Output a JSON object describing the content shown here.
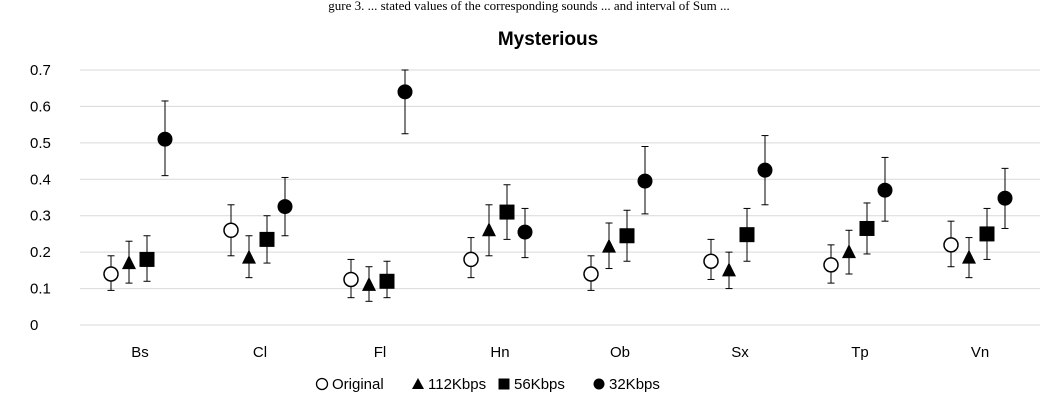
{
  "page": {
    "caption_fragment": "gure 3.   ... stated values of the corresponding sounds ... and interval of Sum ..."
  },
  "chart_data": {
    "type": "scatter",
    "title": "Mysterious",
    "xlabel": "",
    "ylabel": "",
    "ylim": [
      0,
      0.7
    ],
    "yticks": [
      "0",
      "0.1",
      "0.2",
      "0.3",
      "0.4",
      "0.5",
      "0.6",
      "0.7"
    ],
    "categories": [
      "Bs",
      "Cl",
      "Fl",
      "Hn",
      "Ob",
      "Sx",
      "Tp",
      "Vn"
    ],
    "grid": true,
    "legend_position": "bottom",
    "series": [
      {
        "name": "Original",
        "marker": "open-circle",
        "values": [
          0.14,
          0.26,
          0.125,
          0.18,
          0.14,
          0.175,
          0.165,
          0.22
        ],
        "err_low": [
          0.095,
          0.19,
          0.075,
          0.13,
          0.095,
          0.125,
          0.115,
          0.16
        ],
        "err_high": [
          0.19,
          0.33,
          0.18,
          0.24,
          0.19,
          0.235,
          0.22,
          0.285
        ]
      },
      {
        "name": "112Kbps",
        "marker": "triangle",
        "values": [
          0.17,
          0.185,
          0.11,
          0.26,
          0.215,
          0.15,
          0.2,
          0.185
        ],
        "err_low": [
          0.115,
          0.13,
          0.065,
          0.19,
          0.155,
          0.1,
          0.14,
          0.13
        ],
        "err_high": [
          0.23,
          0.245,
          0.16,
          0.33,
          0.28,
          0.2,
          0.26,
          0.24
        ]
      },
      {
        "name": "56Kbps",
        "marker": "filled-square",
        "values": [
          0.18,
          0.235,
          0.12,
          0.31,
          0.245,
          0.248,
          0.265,
          0.25
        ],
        "err_low": [
          0.12,
          0.17,
          0.075,
          0.235,
          0.175,
          0.175,
          0.195,
          0.18
        ],
        "err_high": [
          0.245,
          0.3,
          0.175,
          0.385,
          0.315,
          0.32,
          0.335,
          0.32
        ]
      },
      {
        "name": "32Kbps",
        "marker": "filled-circle",
        "values": [
          0.51,
          0.325,
          0.64,
          0.255,
          0.395,
          0.425,
          0.37,
          0.348
        ],
        "err_low": [
          0.41,
          0.245,
          0.525,
          0.185,
          0.305,
          0.33,
          0.285,
          0.265
        ],
        "err_high": [
          0.615,
          0.405,
          0.7,
          0.32,
          0.49,
          0.52,
          0.46,
          0.43
        ]
      }
    ],
    "colors": {
      "marker": "#000000",
      "grid": "#d9d9d9",
      "background": "#ffffff"
    }
  }
}
